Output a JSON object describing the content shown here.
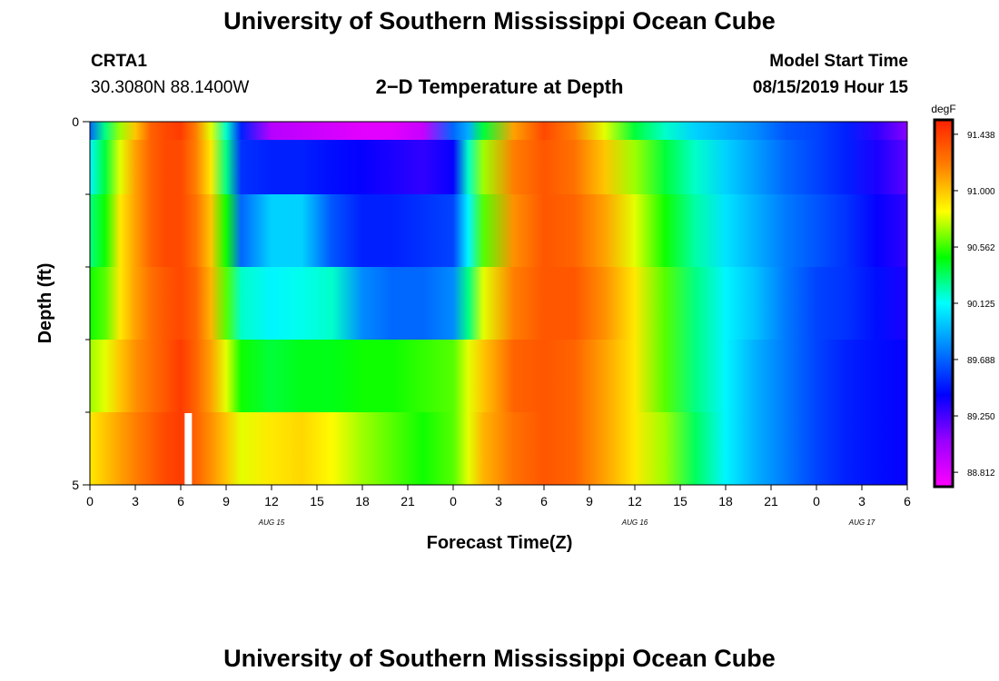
{
  "header": {
    "title": "University of Southern Mississippi Ocean Cube",
    "station_id": "CRTA1",
    "station_coords": "30.3080N 88.1400W",
    "plot_title": "2−D Temperature at Depth",
    "model_start_label": "Model Start Time",
    "model_start_value": "08/15/2019 Hour 15"
  },
  "footer": {
    "title": "University of Southern Mississippi Ocean Cube"
  },
  "chart_data": {
    "type": "heatmap",
    "title": "2−D Temperature at Depth",
    "xlabel": "Forecast Time(Z)",
    "ylabel": "Depth (ft)",
    "x_tick_labels": [
      "0",
      "3",
      "6",
      "9",
      "12",
      "15",
      "18",
      "21",
      "0",
      "3",
      "6",
      "9",
      "12",
      "15",
      "18",
      "21",
      "0",
      "3",
      "6"
    ],
    "date_labels": [
      {
        "label": "AUG 15",
        "hour": 12
      },
      {
        "label": "AUG 16",
        "hour": 36
      },
      {
        "label": "AUG 17",
        "hour": 51
      }
    ],
    "x_range_hours": [
      0,
      54
    ],
    "y_tick_labels": [
      {
        "label": "0",
        "depth": 0
      },
      {
        "label": "5",
        "depth": 5
      }
    ],
    "ylim": [
      0,
      5
    ],
    "depths": [
      0,
      0.5,
      1.5,
      2.5,
      3.5,
      4.5
    ],
    "times_hours": [
      0,
      1,
      2,
      3,
      4,
      5,
      6,
      7,
      8,
      9,
      10,
      12,
      14,
      16,
      18,
      20,
      22,
      24,
      25,
      26,
      28,
      30,
      32,
      34,
      36,
      38,
      40,
      42,
      44,
      46,
      48,
      50,
      52,
      54
    ],
    "values": [
      [
        89.7,
        90.3,
        90.7,
        91.0,
        91.3,
        91.4,
        91.45,
        91.2,
        90.8,
        90.2,
        89.5,
        88.95,
        88.9,
        88.85,
        88.8,
        88.8,
        88.9,
        89.7,
        89.9,
        90.4,
        91.1,
        91.4,
        91.2,
        90.8,
        90.4,
        90.2,
        90.0,
        89.9,
        89.8,
        89.65,
        89.6,
        89.5,
        89.3,
        89.1
      ],
      [
        90.1,
        90.4,
        90.8,
        91.1,
        91.3,
        91.4,
        91.4,
        91.2,
        90.9,
        90.3,
        89.55,
        89.5,
        89.5,
        89.45,
        89.4,
        89.35,
        89.3,
        89.4,
        90.2,
        90.7,
        91.2,
        91.35,
        91.25,
        91.0,
        90.7,
        90.4,
        90.2,
        90.0,
        89.85,
        89.7,
        89.6,
        89.5,
        89.35,
        89.2
      ],
      [
        90.3,
        90.5,
        90.9,
        91.1,
        91.3,
        91.4,
        91.4,
        91.25,
        91.0,
        90.5,
        89.7,
        90.0,
        90.0,
        89.65,
        89.5,
        89.5,
        89.55,
        89.6,
        90.1,
        90.6,
        91.15,
        91.35,
        91.3,
        91.1,
        90.8,
        90.5,
        90.25,
        90.05,
        89.9,
        89.75,
        89.65,
        89.55,
        89.4,
        89.3
      ],
      [
        90.5,
        90.6,
        90.9,
        91.1,
        91.25,
        91.35,
        91.4,
        91.3,
        91.05,
        90.6,
        90.2,
        90.1,
        90.15,
        90.2,
        89.8,
        89.7,
        89.7,
        89.8,
        90.3,
        90.8,
        91.2,
        91.35,
        91.35,
        91.15,
        90.9,
        90.6,
        90.3,
        90.1,
        89.95,
        89.75,
        89.6,
        89.55,
        89.45,
        89.35
      ],
      [
        90.7,
        90.8,
        91.0,
        91.15,
        91.25,
        91.35,
        91.45,
        91.3,
        91.1,
        90.8,
        90.5,
        90.4,
        90.45,
        90.45,
        90.5,
        90.5,
        90.55,
        90.6,
        90.8,
        91.0,
        91.3,
        91.35,
        91.3,
        91.1,
        90.9,
        90.6,
        90.3,
        90.1,
        89.9,
        89.75,
        89.6,
        89.5,
        89.45,
        89.4
      ],
      [
        90.9,
        91.0,
        91.1,
        91.2,
        91.3,
        91.4,
        91.45,
        91.3,
        91.15,
        91.0,
        90.8,
        90.9,
        90.95,
        90.85,
        90.7,
        90.6,
        90.5,
        90.6,
        90.8,
        91.05,
        91.25,
        91.35,
        91.3,
        91.1,
        90.9,
        90.7,
        90.35,
        90.1,
        89.9,
        89.75,
        89.6,
        89.5,
        89.45,
        89.4
      ]
    ],
    "missing_cells": [
      {
        "depth": 4.5,
        "hour": 6.5
      }
    ],
    "colorbar": {
      "unit": "degF",
      "min": 88.7,
      "max": 91.55,
      "tick_labels": [
        "91.438",
        "91.000",
        "90.562",
        "90.125",
        "89.688",
        "89.250",
        "88.812"
      ]
    },
    "colors": [
      "#ff00ff",
      "#9900ff",
      "#0000ff",
      "#0080ff",
      "#00ffff",
      "#00ff00",
      "#ffff00",
      "#ff8000",
      "#ff2000"
    ]
  }
}
